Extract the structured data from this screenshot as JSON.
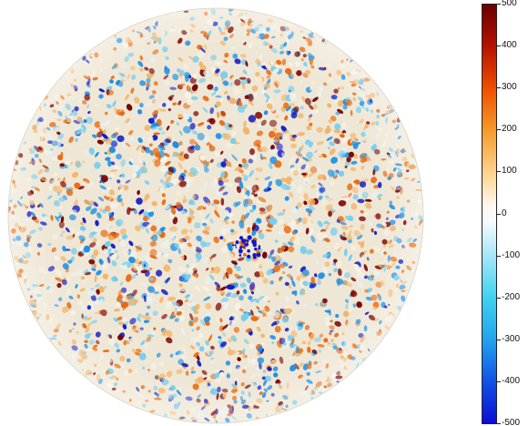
{
  "image": {
    "subject": "magnetogram-solar-disk",
    "palette": {
      "positive_dark": "#7a0000",
      "positive_strong": "#e8690e",
      "positive_light": "#f4b468",
      "neutral": "#f5f3ea",
      "negative_light": "#74cdee",
      "negative_strong": "#1a8fe6",
      "negative_dark": "#0c18c8"
    }
  },
  "colorbar": {
    "ticks": [
      {
        "label": "500",
        "value": 500
      },
      {
        "label": "400",
        "value": 400
      },
      {
        "label": "300",
        "value": 300
      },
      {
        "label": "200",
        "value": 200
      },
      {
        "label": "100",
        "value": 100
      },
      {
        "label": "0",
        "value": 0
      },
      {
        "label": "-100",
        "value": -100
      },
      {
        "label": "-200",
        "value": -200
      },
      {
        "label": "-300",
        "value": -300
      },
      {
        "label": "-400",
        "value": -400
      },
      {
        "label": "-500",
        "value": -500
      }
    ],
    "range": [
      -500,
      500
    ]
  }
}
